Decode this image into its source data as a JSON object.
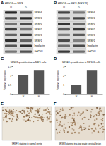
{
  "chart_data": [
    {
      "type": "bar",
      "title": "SRSF3 quantification in NIKS cells",
      "y_label": "Relative expression",
      "categories": [
        "U",
        "D"
      ],
      "values": [
        1,
        1.3
      ],
      "color": "#555555",
      "ylim": [
        0,
        1.5
      ],
      "yticks": [
        0,
        0.5,
        1,
        1.5
      ]
    },
    {
      "type": "bar",
      "title": "SRSF3 quantification in NIKS16 cells",
      "y_label": "Relative expression",
      "categories": [
        "U",
        "D"
      ],
      "values": [
        1,
        2.6
      ],
      "color": "#555555",
      "ylim": [
        0,
        3
      ],
      "yticks": [
        0,
        1,
        2,
        3
      ]
    }
  ],
  "figure": {
    "letters": [
      "A",
      "B",
      "C",
      "D",
      "E",
      "F"
    ],
    "blots": [
      {
        "title": "HPV16-ve NIKS",
        "lanes": [
          "U",
          "D"
        ],
        "proteins": [
          "SRSF4",
          "SRSF6",
          "SRSF5",
          "SRSF2",
          "SRSF3",
          "SRSF1",
          "Involucrin",
          "GAPDH"
        ]
      },
      {
        "title": "HPV16+ve NIKS (NIKS16)",
        "lanes": [
          "U",
          "D"
        ],
        "proteins": [
          "SRSF4",
          "SRSF6",
          "SRSF5",
          "SRSF2",
          "SRSF3",
          "SRSF1",
          "Involucrin",
          "GAPDH"
        ]
      }
    ],
    "images": [
      {
        "title": "SRSF3 staining in normal cervix"
      },
      {
        "title": "SRSF3 staining in a low grade cervical lesion"
      }
    ]
  }
}
